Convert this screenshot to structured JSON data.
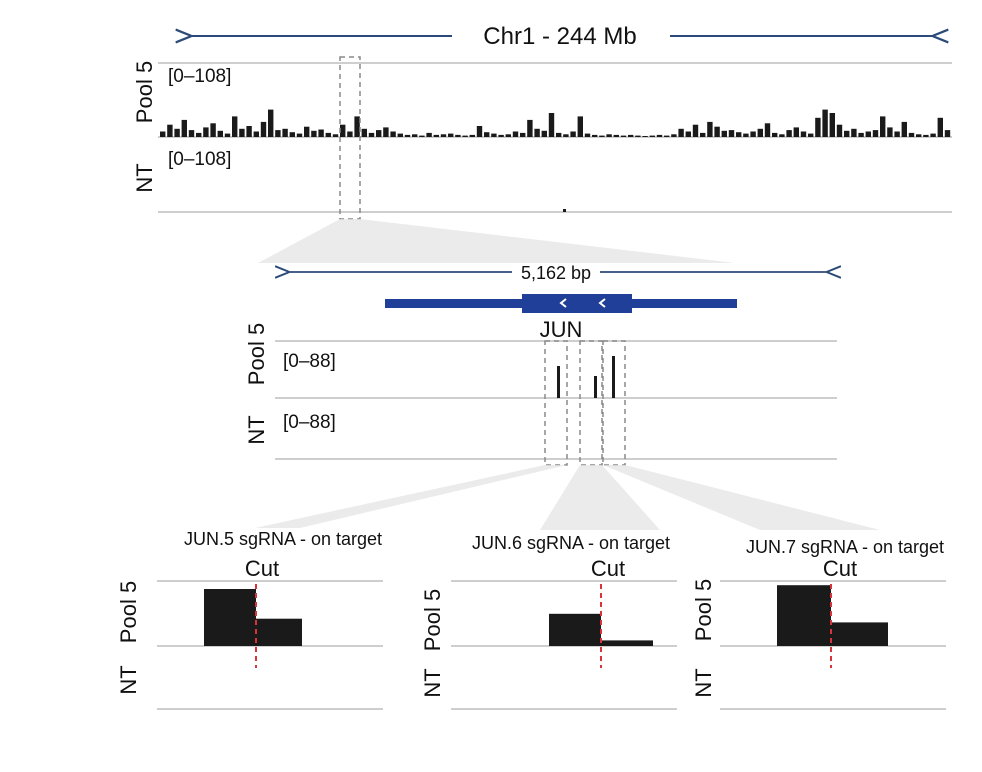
{
  "colors": {
    "bar": "#1a1a1a",
    "axis": "#bdbdbd",
    "arrow": "#2b4a7a",
    "gene": "#1f3f99",
    "cut": "#d9343a",
    "box": "#8a8a8a",
    "zoom_fill": "#d9d9d9"
  },
  "overview": {
    "title": "Chr1 - 244 Mb",
    "tracks": [
      {
        "name": "Pool 5",
        "range": "[0–108]"
      },
      {
        "name": "NT",
        "range": "[0–108]"
      }
    ],
    "max": 108
  },
  "locus": {
    "span": "5,162 bp",
    "gene": "JUN",
    "strand_icon": "chevron-left-icon",
    "tracks": [
      {
        "name": "Pool 5",
        "range": "[0–88]"
      },
      {
        "name": "NT",
        "range": "[0–88]"
      }
    ],
    "max": 88,
    "peaks": [
      40,
      22,
      50
    ]
  },
  "panels": [
    {
      "title": "JUN.5 sgRNA - on target",
      "cut": "Cut",
      "pool": "Pool 5",
      "nt": "NT",
      "left": 0.92,
      "right": 0.44
    },
    {
      "title": "JUN.6 sgRNA - on target",
      "cut": "Cut",
      "pool": "Pool 5",
      "nt": "NT",
      "left": 0.52,
      "right": 0.09
    },
    {
      "title": "JUN.7 sgRNA - on target",
      "cut": "Cut",
      "pool": "Pool 5",
      "nt": "NT",
      "left": 0.98,
      "right": 0.38
    }
  ],
  "chart_data": {
    "type": "bar",
    "title": "Chr1 - 244 Mb",
    "series": [
      {
        "name": "Pool 5",
        "values": [
          8,
          18,
          12,
          25,
          10,
          6,
          14,
          20,
          9,
          5,
          30,
          12,
          16,
          8,
          22,
          40,
          10,
          12,
          7,
          5,
          15,
          9,
          11,
          6,
          4,
          18,
          8,
          30,
          12,
          6,
          10,
          14,
          8,
          5,
          3,
          4,
          2,
          6,
          3,
          4,
          5,
          3,
          2,
          3,
          16,
          7,
          5,
          3,
          4,
          8,
          6,
          25,
          12,
          9,
          35,
          6,
          4,
          8,
          30,
          5,
          3,
          2,
          4,
          3,
          2,
          3,
          2,
          1,
          2,
          3,
          2,
          4,
          12,
          8,
          18,
          6,
          22,
          15,
          9,
          10,
          7,
          5,
          8,
          12,
          20,
          6,
          4,
          10,
          14,
          8,
          5,
          28,
          40,
          35,
          18,
          9,
          12,
          6,
          8,
          10,
          30,
          14,
          8,
          22,
          6,
          4,
          3,
          5,
          28,
          10
        ]
      },
      {
        "name": "NT",
        "values": [
          0
        ]
      }
    ],
    "ylim": [
      0,
      108
    ]
  }
}
